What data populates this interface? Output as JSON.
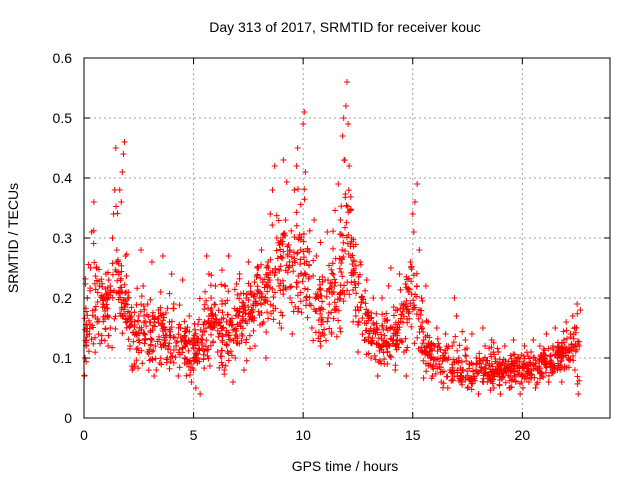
{
  "chart_data": {
    "type": "scatter",
    "title": "Day 313 of 2017, SRMTID for receiver kouc",
    "xlabel": "GPS time / hours",
    "ylabel": "SRMTID / TECUs",
    "xlim": [
      0,
      24
    ],
    "ylim": [
      0,
      0.6
    ],
    "xticks": [
      0,
      5,
      10,
      15,
      20
    ],
    "yticks": [
      0,
      0.1,
      0.2,
      0.3,
      0.4,
      0.5,
      0.6
    ],
    "xtick_labels": [
      "0",
      "5",
      "10",
      "15",
      "20"
    ],
    "ytick_labels": [
      "0",
      "0.1",
      "0.2",
      "0.3",
      "0.4",
      "0.5",
      "0.6"
    ],
    "grid": true,
    "marker": "+",
    "color": "#ff0000",
    "series": [
      {
        "name": "SRMTID",
        "envelope": [
          {
            "x": 0.0,
            "low": 0.06,
            "mid": 0.16,
            "high": 0.28
          },
          {
            "x": 0.5,
            "low": 0.07,
            "mid": 0.17,
            "high": 0.37
          },
          {
            "x": 1.0,
            "low": 0.09,
            "mid": 0.19,
            "high": 0.26
          },
          {
            "x": 1.4,
            "low": 0.1,
            "mid": 0.22,
            "high": 0.45
          },
          {
            "x": 1.8,
            "low": 0.1,
            "mid": 0.21,
            "high": 0.46
          },
          {
            "x": 2.2,
            "low": 0.06,
            "mid": 0.15,
            "high": 0.27
          },
          {
            "x": 3.0,
            "low": 0.06,
            "mid": 0.14,
            "high": 0.27
          },
          {
            "x": 4.0,
            "low": 0.06,
            "mid": 0.14,
            "high": 0.24
          },
          {
            "x": 5.0,
            "low": 0.04,
            "mid": 0.11,
            "high": 0.18
          },
          {
            "x": 5.6,
            "low": 0.06,
            "mid": 0.15,
            "high": 0.28
          },
          {
            "x": 6.5,
            "low": 0.06,
            "mid": 0.14,
            "high": 0.27
          },
          {
            "x": 7.5,
            "low": 0.08,
            "mid": 0.19,
            "high": 0.26
          },
          {
            "x": 8.5,
            "low": 0.11,
            "mid": 0.22,
            "high": 0.36
          },
          {
            "x": 9.0,
            "low": 0.12,
            "mid": 0.26,
            "high": 0.43
          },
          {
            "x": 9.5,
            "low": 0.13,
            "mid": 0.25,
            "high": 0.42
          },
          {
            "x": 10.0,
            "low": 0.11,
            "mid": 0.24,
            "high": 0.5
          },
          {
            "x": 10.5,
            "low": 0.1,
            "mid": 0.2,
            "high": 0.33
          },
          {
            "x": 11.0,
            "low": 0.08,
            "mid": 0.18,
            "high": 0.31
          },
          {
            "x": 11.6,
            "low": 0.1,
            "mid": 0.22,
            "high": 0.4
          },
          {
            "x": 12.0,
            "low": 0.12,
            "mid": 0.3,
            "high": 0.56
          },
          {
            "x": 12.5,
            "low": 0.1,
            "mid": 0.22,
            "high": 0.3
          },
          {
            "x": 13.0,
            "low": 0.08,
            "mid": 0.15,
            "high": 0.22
          },
          {
            "x": 13.5,
            "low": 0.07,
            "mid": 0.12,
            "high": 0.2
          },
          {
            "x": 14.0,
            "low": 0.07,
            "mid": 0.13,
            "high": 0.25
          },
          {
            "x": 14.5,
            "low": 0.07,
            "mid": 0.16,
            "high": 0.25
          },
          {
            "x": 15.0,
            "low": 0.1,
            "mid": 0.2,
            "high": 0.39
          },
          {
            "x": 15.5,
            "low": 0.06,
            "mid": 0.12,
            "high": 0.22
          },
          {
            "x": 16.0,
            "low": 0.05,
            "mid": 0.09,
            "high": 0.15
          },
          {
            "x": 17.0,
            "low": 0.04,
            "mid": 0.08,
            "high": 0.2
          },
          {
            "x": 18.0,
            "low": 0.04,
            "mid": 0.08,
            "high": 0.15
          },
          {
            "x": 19.0,
            "low": 0.04,
            "mid": 0.08,
            "high": 0.13
          },
          {
            "x": 20.0,
            "low": 0.04,
            "mid": 0.08,
            "high": 0.13
          },
          {
            "x": 21.0,
            "low": 0.05,
            "mid": 0.09,
            "high": 0.14
          },
          {
            "x": 21.5,
            "low": 0.05,
            "mid": 0.1,
            "high": 0.15
          },
          {
            "x": 22.0,
            "low": 0.06,
            "mid": 0.11,
            "high": 0.17
          },
          {
            "x": 22.6,
            "low": 0.04,
            "mid": 0.12,
            "high": 0.19
          }
        ],
        "points": [
          [
            0.02,
            0.07
          ],
          [
            0.05,
            0.1
          ],
          [
            0.1,
            0.12
          ],
          [
            0.15,
            0.2
          ],
          [
            0.25,
            0.14
          ],
          [
            0.3,
            0.25
          ],
          [
            0.35,
            0.31
          ],
          [
            0.45,
            0.36
          ],
          [
            0.5,
            0.18
          ],
          [
            0.6,
            0.16
          ],
          [
            0.7,
            0.22
          ],
          [
            0.8,
            0.13
          ],
          [
            0.9,
            0.2
          ],
          [
            1.0,
            0.24
          ],
          [
            1.1,
            0.12
          ],
          [
            1.2,
            0.15
          ],
          [
            1.3,
            0.3
          ],
          [
            1.35,
            0.34
          ],
          [
            1.4,
            0.38
          ],
          [
            1.45,
            0.45
          ],
          [
            1.5,
            0.26
          ],
          [
            1.6,
            0.21
          ],
          [
            1.7,
            0.36
          ],
          [
            1.75,
            0.41
          ],
          [
            1.8,
            0.44
          ],
          [
            1.85,
            0.46
          ],
          [
            1.9,
            0.27
          ],
          [
            2.0,
            0.2
          ],
          [
            2.1,
            0.12
          ],
          [
            2.2,
            0.08
          ],
          [
            2.3,
            0.09
          ],
          [
            2.4,
            0.14
          ],
          [
            2.5,
            0.17
          ],
          [
            2.6,
            0.28
          ],
          [
            2.7,
            0.22
          ],
          [
            2.8,
            0.13
          ],
          [
            2.9,
            0.11
          ],
          [
            3.0,
            0.16
          ],
          [
            3.1,
            0.26
          ],
          [
            3.2,
            0.07
          ],
          [
            3.3,
            0.08
          ],
          [
            3.4,
            0.18
          ],
          [
            3.5,
            0.21
          ],
          [
            3.6,
            0.27
          ],
          [
            3.7,
            0.13
          ],
          [
            3.8,
            0.1
          ],
          [
            3.9,
            0.16
          ],
          [
            4.0,
            0.24
          ],
          [
            4.1,
            0.19
          ],
          [
            4.2,
            0.12
          ],
          [
            4.3,
            0.07
          ],
          [
            4.4,
            0.15
          ],
          [
            4.5,
            0.23
          ],
          [
            4.6,
            0.12
          ],
          [
            4.7,
            0.09
          ],
          [
            4.8,
            0.17
          ],
          [
            4.9,
            0.06
          ],
          [
            5.0,
            0.08
          ],
          [
            5.1,
            0.05
          ],
          [
            5.2,
            0.1
          ],
          [
            5.3,
            0.04
          ],
          [
            5.4,
            0.13
          ],
          [
            5.5,
            0.16
          ],
          [
            5.6,
            0.27
          ],
          [
            5.7,
            0.24
          ],
          [
            5.8,
            0.2
          ],
          [
            5.9,
            0.17
          ],
          [
            6.0,
            0.22
          ],
          [
            6.1,
            0.11
          ],
          [
            6.2,
            0.14
          ],
          [
            6.3,
            0.19
          ],
          [
            6.4,
            0.08
          ],
          [
            6.5,
            0.16
          ],
          [
            6.6,
            0.27
          ],
          [
            6.7,
            0.13
          ],
          [
            6.8,
            0.06
          ],
          [
            6.9,
            0.1
          ],
          [
            7.0,
            0.18
          ],
          [
            7.1,
            0.24
          ],
          [
            7.2,
            0.14
          ],
          [
            7.3,
            0.08
          ],
          [
            7.4,
            0.2
          ],
          [
            7.5,
            0.26
          ],
          [
            7.6,
            0.22
          ],
          [
            7.7,
            0.18
          ],
          [
            7.8,
            0.12
          ],
          [
            7.9,
            0.25
          ],
          [
            8.0,
            0.2
          ],
          [
            8.1,
            0.28
          ],
          [
            8.2,
            0.16
          ],
          [
            8.3,
            0.1
          ],
          [
            8.4,
            0.26
          ],
          [
            8.5,
            0.34
          ],
          [
            8.6,
            0.38
          ],
          [
            8.7,
            0.42
          ],
          [
            8.8,
            0.3
          ],
          [
            8.9,
            0.22
          ],
          [
            9.0,
            0.15
          ],
          [
            9.1,
            0.43
          ],
          [
            9.2,
            0.33
          ],
          [
            9.3,
            0.27
          ],
          [
            9.4,
            0.2
          ],
          [
            9.5,
            0.14
          ],
          [
            9.6,
            0.38
          ],
          [
            9.7,
            0.42
          ],
          [
            9.75,
            0.45
          ],
          [
            9.8,
            0.3
          ],
          [
            9.9,
            0.24
          ],
          [
            10.0,
            0.49
          ],
          [
            10.05,
            0.51
          ],
          [
            10.1,
            0.41
          ],
          [
            10.2,
            0.28
          ],
          [
            10.3,
            0.19
          ],
          [
            10.4,
            0.15
          ],
          [
            10.5,
            0.33
          ],
          [
            10.6,
            0.27
          ],
          [
            10.7,
            0.2
          ],
          [
            10.8,
            0.12
          ],
          [
            10.9,
            0.16
          ],
          [
            11.0,
            0.23
          ],
          [
            11.1,
            0.31
          ],
          [
            11.2,
            0.09
          ],
          [
            11.3,
            0.14
          ],
          [
            11.4,
            0.21
          ],
          [
            11.5,
            0.18
          ],
          [
            11.6,
            0.39
          ],
          [
            11.7,
            0.33
          ],
          [
            11.8,
            0.47
          ],
          [
            11.85,
            0.5
          ],
          [
            11.9,
            0.43
          ],
          [
            11.95,
            0.52
          ],
          [
            12.0,
            0.56
          ],
          [
            12.05,
            0.49
          ],
          [
            12.1,
            0.42
          ],
          [
            12.2,
            0.3
          ],
          [
            12.3,
            0.24
          ],
          [
            12.4,
            0.17
          ],
          [
            12.5,
            0.11
          ],
          [
            12.6,
            0.26
          ],
          [
            12.7,
            0.2
          ],
          [
            12.8,
            0.13
          ],
          [
            12.9,
            0.23
          ],
          [
            13.0,
            0.17
          ],
          [
            13.1,
            0.1
          ],
          [
            13.2,
            0.2
          ],
          [
            13.3,
            0.14
          ],
          [
            13.4,
            0.07
          ],
          [
            13.5,
            0.12
          ],
          [
            13.6,
            0.2
          ],
          [
            13.7,
            0.09
          ],
          [
            13.8,
            0.15
          ],
          [
            13.9,
            0.22
          ],
          [
            14.0,
            0.25
          ],
          [
            14.1,
            0.13
          ],
          [
            14.2,
            0.08
          ],
          [
            14.3,
            0.18
          ],
          [
            14.4,
            0.24
          ],
          [
            14.5,
            0.19
          ],
          [
            14.6,
            0.11
          ],
          [
            14.7,
            0.07
          ],
          [
            14.8,
            0.21
          ],
          [
            14.9,
            0.26
          ],
          [
            15.0,
            0.34
          ],
          [
            15.05,
            0.31
          ],
          [
            15.1,
            0.36
          ],
          [
            15.2,
            0.39
          ],
          [
            15.3,
            0.28
          ],
          [
            15.4,
            0.2
          ],
          [
            15.5,
            0.13
          ],
          [
            15.6,
            0.22
          ],
          [
            15.7,
            0.16
          ],
          [
            15.8,
            0.1
          ],
          [
            15.9,
            0.07
          ],
          [
            16.0,
            0.12
          ],
          [
            16.1,
            0.15
          ],
          [
            16.2,
            0.09
          ],
          [
            16.3,
            0.06
          ],
          [
            16.4,
            0.1
          ],
          [
            16.5,
            0.14
          ],
          [
            16.6,
            0.05
          ],
          [
            16.7,
            0.08
          ],
          [
            16.8,
            0.12
          ],
          [
            16.9,
            0.2
          ],
          [
            17.0,
            0.17
          ],
          [
            17.1,
            0.1
          ],
          [
            17.2,
            0.06
          ],
          [
            17.3,
            0.08
          ],
          [
            17.4,
            0.13
          ],
          [
            17.5,
            0.05
          ],
          [
            17.6,
            0.09
          ],
          [
            17.7,
            0.14
          ],
          [
            17.8,
            0.07
          ],
          [
            17.9,
            0.1
          ],
          [
            18.0,
            0.04
          ],
          [
            18.1,
            0.08
          ],
          [
            18.2,
            0.15
          ],
          [
            18.3,
            0.12
          ],
          [
            18.4,
            0.06
          ],
          [
            18.5,
            0.09
          ],
          [
            18.6,
            0.13
          ],
          [
            18.7,
            0.05
          ],
          [
            18.8,
            0.08
          ],
          [
            18.9,
            0.11
          ],
          [
            19.0,
            0.04
          ],
          [
            19.1,
            0.07
          ],
          [
            19.2,
            0.12
          ],
          [
            19.3,
            0.09
          ],
          [
            19.4,
            0.05
          ],
          [
            19.5,
            0.08
          ],
          [
            19.6,
            0.13
          ],
          [
            19.7,
            0.06
          ],
          [
            19.8,
            0.1
          ],
          [
            19.9,
            0.04
          ],
          [
            20.0,
            0.07
          ],
          [
            20.1,
            0.12
          ],
          [
            20.2,
            0.09
          ],
          [
            20.3,
            0.06
          ],
          [
            20.4,
            0.11
          ],
          [
            20.5,
            0.13
          ],
          [
            20.6,
            0.05
          ],
          [
            20.7,
            0.08
          ],
          [
            20.8,
            0.12
          ],
          [
            20.9,
            0.07
          ],
          [
            21.0,
            0.1
          ],
          [
            21.1,
            0.14
          ],
          [
            21.2,
            0.06
          ],
          [
            21.3,
            0.09
          ],
          [
            21.4,
            0.12
          ],
          [
            21.5,
            0.15
          ],
          [
            21.6,
            0.08
          ],
          [
            21.7,
            0.11
          ],
          [
            21.8,
            0.06
          ],
          [
            21.9,
            0.13
          ],
          [
            22.0,
            0.16
          ],
          [
            22.1,
            0.1
          ],
          [
            22.2,
            0.14
          ],
          [
            22.3,
            0.17
          ],
          [
            22.4,
            0.08
          ],
          [
            22.5,
            0.19
          ],
          [
            22.55,
            0.04
          ],
          [
            22.6,
            0.12
          ],
          [
            22.65,
            0.18
          ]
        ]
      }
    ]
  }
}
